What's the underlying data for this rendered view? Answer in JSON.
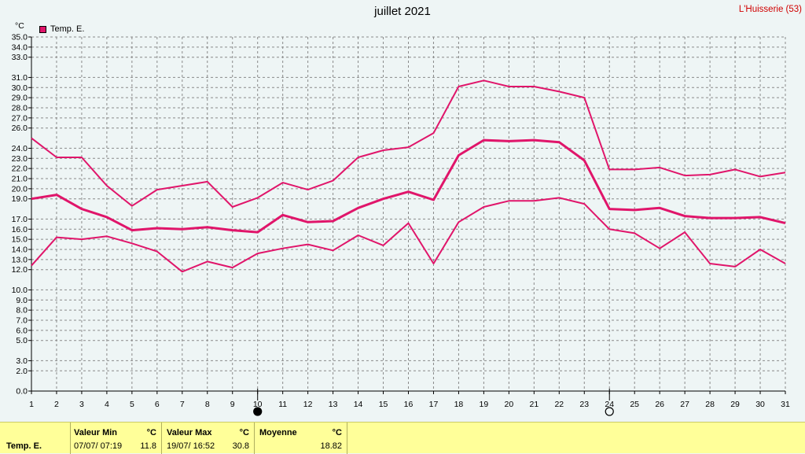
{
  "header": {
    "title": "juillet 2021",
    "station": "L'Huisserie (53)",
    "unit": "°C"
  },
  "legend": {
    "label": "Temp. E.",
    "color": "#e0156a"
  },
  "chart_data": {
    "type": "line",
    "title": "juillet 2021",
    "ylabel": "°C",
    "ylim": [
      0,
      35
    ],
    "grid": true,
    "legend_position": "top-left",
    "x": [
      1,
      2,
      3,
      4,
      5,
      6,
      7,
      8,
      9,
      10,
      11,
      12,
      13,
      14,
      15,
      16,
      17,
      18,
      19,
      20,
      21,
      22,
      23,
      24,
      25,
      26,
      27,
      28,
      29,
      30,
      31
    ],
    "y_ticks": [
      "0.0",
      "2.0",
      "3.0",
      "5.0",
      "6.0",
      "7.0",
      "8.0",
      "9.0",
      "10.0",
      "12.0",
      "13.0",
      "14.0",
      "15.0",
      "16.0",
      "17.0",
      "19.0",
      "20.0",
      "21.0",
      "22.0",
      "23.0",
      "24.0",
      "26.0",
      "27.0",
      "28.0",
      "29.0",
      "30.0",
      "31.0",
      "33.0",
      "34.0",
      "35.0"
    ],
    "series": [
      {
        "values": [
          25.0,
          23.1,
          23.1,
          20.3,
          18.3,
          19.9,
          20.3,
          20.7,
          18.2,
          19.1,
          20.6,
          19.9,
          20.8,
          23.1,
          23.8,
          24.1,
          25.5,
          30.1,
          30.7,
          30.1,
          30.1,
          29.6,
          29.0,
          21.9,
          21.9,
          22.1,
          21.3,
          21.4,
          21.9,
          21.2,
          21.6
        ]
      },
      {
        "values": [
          19.0,
          19.4,
          18.0,
          17.2,
          15.9,
          16.1,
          16.0,
          16.2,
          15.9,
          15.7,
          17.4,
          16.7,
          16.8,
          18.1,
          19.0,
          19.7,
          18.9,
          23.3,
          24.8,
          24.7,
          24.8,
          24.6,
          22.8,
          18.0,
          17.9,
          18.1,
          17.3,
          17.1,
          17.1,
          17.2,
          16.6
        ]
      },
      {
        "values": [
          12.4,
          15.2,
          15.0,
          15.3,
          14.6,
          13.8,
          11.8,
          12.8,
          12.2,
          13.6,
          14.1,
          14.5,
          13.9,
          15.4,
          14.4,
          16.6,
          12.6,
          16.7,
          18.2,
          18.8,
          18.8,
          19.1,
          18.5,
          16.0,
          15.6,
          14.1,
          15.7,
          12.6,
          12.3,
          14.0,
          12.6
        ]
      }
    ],
    "moon_markers": [
      {
        "day": 10,
        "phase": "new-moon-icon"
      },
      {
        "day": 24,
        "phase": "full-moon-icon"
      }
    ]
  },
  "footer": {
    "row_label": "Temp. E.",
    "min": {
      "label": "Valeur Min",
      "unit": "°C",
      "datetime": "07/07/  07:19",
      "value": "11.8"
    },
    "max": {
      "label": "Valeur Max",
      "unit": "°C",
      "datetime": "19/07/  16:52",
      "value": "30.8"
    },
    "avg": {
      "label": "Moyenne",
      "unit": "°C",
      "value": "18.82"
    }
  }
}
